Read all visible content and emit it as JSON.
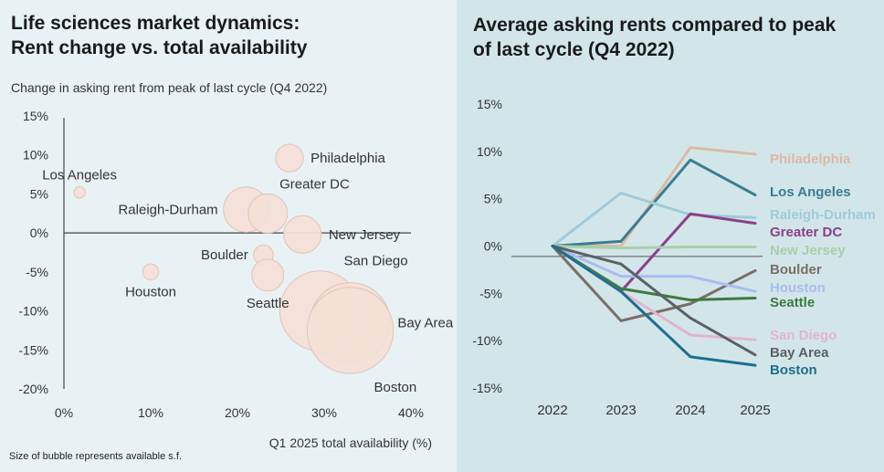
{
  "left_chart": {
    "title_line1": "Life sciences market dynamics:",
    "title_line2": "Rent change vs. total availability",
    "subtitle": "Change in asking rent from peak of last cycle (Q4 2022)",
    "note": "Size of bubble represents available s.f.",
    "colors": {
      "bubble_fill": "#f4dfd6",
      "bubble_stroke": "#e2c3b5",
      "axis": "#444444",
      "text": "#333333"
    }
  },
  "right_chart": {
    "title_line1": "Average asking rents compared to peak",
    "title_line2": "of last cycle (Q4 2022)"
  },
  "chart_data": [
    {
      "type": "scatter",
      "subtype": "bubble",
      "title": "Life sciences market dynamics: Rent change vs. total availability",
      "ylabel": "Change in asking rent from peak of last cycle (Q4 2022)",
      "xlabel": "Q1 2025 total availability (%)",
      "xlim": [
        0,
        40
      ],
      "ylim": [
        -20,
        15
      ],
      "x_ticks": [
        0,
        10,
        20,
        30,
        40
      ],
      "x_tick_labels": [
        "0%",
        "10%",
        "20%",
        "30%",
        "40%"
      ],
      "y_ticks": [
        15,
        10,
        5,
        0,
        -5,
        -10,
        -15,
        -20
      ],
      "y_tick_labels": [
        "15%",
        "10%",
        "5%",
        "0%",
        "-5%",
        "-10%",
        "-15%",
        "-20%"
      ],
      "size_legend": "Size of bubble represents available s.f.",
      "points": [
        {
          "name": "Los Angeles",
          "x": 1.8,
          "y": 5.2,
          "size": 1,
          "label_pos": "above"
        },
        {
          "name": "Philadelphia",
          "x": 26,
          "y": 9.6,
          "size": 6,
          "label_pos": "right"
        },
        {
          "name": "Raleigh-Durham",
          "x": 21,
          "y": 3.0,
          "size": 16,
          "label_pos": "left"
        },
        {
          "name": "Greater DC",
          "x": 23.5,
          "y": 2.5,
          "size": 12,
          "label_pos": "above-right"
        },
        {
          "name": "New Jersey",
          "x": 27.5,
          "y": -0.2,
          "size": 11,
          "label_pos": "right"
        },
        {
          "name": "Boulder",
          "x": 23,
          "y": -2.8,
          "size": 3,
          "label_pos": "left"
        },
        {
          "name": "Houston",
          "x": 10,
          "y": -5.0,
          "size": 2,
          "label_pos": "below"
        },
        {
          "name": "Seattle",
          "x": 23.5,
          "y": -5.4,
          "size": 8,
          "label_pos": "below"
        },
        {
          "name": "San Diego",
          "x": 29.5,
          "y": -10.0,
          "size": 50,
          "label_pos": "above-right"
        },
        {
          "name": "Bay Area",
          "x": 33,
          "y": -11.5,
          "size": 50,
          "label_pos": "right"
        },
        {
          "name": "Boston",
          "x": 33,
          "y": -12.5,
          "size": 58,
          "label_pos": "below-right"
        }
      ]
    },
    {
      "type": "line",
      "title": "Average asking rents compared to peak of last cycle (Q4 2022)",
      "x": [
        "2022",
        "2023",
        "2024",
        "2025"
      ],
      "ylim": [
        -15,
        15
      ],
      "y_ticks": [
        15,
        10,
        5,
        0,
        -5,
        -10,
        -15
      ],
      "y_tick_labels": [
        "15%",
        "10%",
        "5%",
        "0%",
        "-5%",
        "-10%",
        "-15%"
      ],
      "series": [
        {
          "name": "Philadelphia",
          "values": [
            0,
            0,
            10.4,
            9.7
          ],
          "color": "#ddb9a3"
        },
        {
          "name": "Los Angeles",
          "values": [
            0,
            0.5,
            9.1,
            5.4
          ],
          "color": "#3b7d90"
        },
        {
          "name": "Raleigh-Durham",
          "values": [
            0,
            5.6,
            3.3,
            3.0
          ],
          "color": "#9fcbd8"
        },
        {
          "name": "Greater DC",
          "values": [
            0,
            -4.8,
            3.4,
            2.4
          ],
          "color": "#8c3f8a"
        },
        {
          "name": "New Jersey",
          "values": [
            0,
            -0.2,
            -0.1,
            -0.1
          ],
          "color": "#a9cfa9"
        },
        {
          "name": "Boulder",
          "values": [
            0,
            -7.9,
            -6.1,
            -2.6
          ],
          "color": "#7a6e66"
        },
        {
          "name": "Houston",
          "values": [
            0,
            -3.2,
            -3.2,
            -4.8
          ],
          "color": "#a9bdf0"
        },
        {
          "name": "Seattle",
          "values": [
            0,
            -4.5,
            -5.7,
            -5.5
          ],
          "color": "#3e7a3e"
        },
        {
          "name": "San Diego",
          "values": [
            0,
            -4.8,
            -9.4,
            -9.9
          ],
          "color": "#e3b4ce"
        },
        {
          "name": "Bay Area",
          "values": [
            0,
            -1.9,
            -7.6,
            -11.5
          ],
          "color": "#5b6165"
        },
        {
          "name": "Boston",
          "values": [
            0,
            -4.8,
            -11.7,
            -12.6
          ],
          "color": "#1d6e90"
        }
      ]
    }
  ]
}
